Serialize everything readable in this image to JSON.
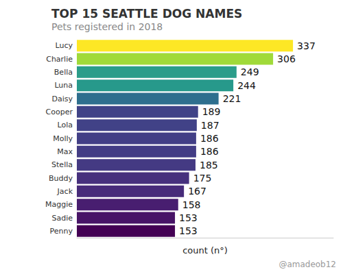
{
  "chart_data": {
    "type": "bar",
    "title": "TOP 15 SEATTLE DOG NAMES",
    "subtitle": "Pets registered in 2018",
    "orientation": "horizontal",
    "categories": [
      "Lucy",
      "Charlie",
      "Bella",
      "Luna",
      "Daisy",
      "Cooper",
      "Lola",
      "Molly",
      "Max",
      "Stella",
      "Buddy",
      "Jack",
      "Maggie",
      "Sadie",
      "Penny"
    ],
    "values": [
      337,
      306,
      249,
      244,
      221,
      189,
      187,
      186,
      186,
      185,
      175,
      167,
      158,
      153,
      153
    ],
    "colors": [
      "#fde725",
      "#a0da39",
      "#2a9d8a",
      "#27998b",
      "#2e6f8e",
      "#404387",
      "#414287",
      "#423f86",
      "#433d85",
      "#443a83",
      "#46307d",
      "#472b7a",
      "#481e70",
      "#481467",
      "#440154"
    ],
    "xlabel": "count (n°)",
    "xlim": [
      0,
      400
    ],
    "tick_labels": "y",
    "grid": false,
    "data_labels": true,
    "annotations": [
      "@amadeob12"
    ]
  }
}
